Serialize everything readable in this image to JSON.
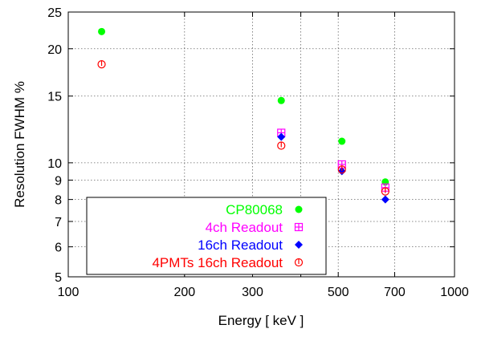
{
  "chart_data": {
    "type": "scatter",
    "title": "",
    "xlabel": "Energy [ keV ]",
    "ylabel": "Resolution FWHM %",
    "x_scale": "log",
    "y_scale": "log",
    "xlim": [
      100,
      1000
    ],
    "ylim": [
      5,
      25
    ],
    "grid": true,
    "legend_position": "bottom-left",
    "x_ticks": [
      100,
      200,
      300,
      400,
      500,
      700,
      1000
    ],
    "x_tick_labels": [
      "100",
      "200",
      "300",
      "",
      "500",
      "700",
      "1000"
    ],
    "y_ticks": [
      5,
      6,
      7,
      8,
      9,
      10,
      15,
      20,
      25
    ],
    "y_tick_labels": [
      "5",
      "6",
      "7",
      "8",
      "9",
      "10",
      "15",
      "20",
      "25"
    ],
    "series": [
      {
        "name": "CP80068",
        "color": "#00ff00",
        "marker": "filled-circle",
        "points": [
          [
            122,
            22.2
          ],
          [
            356,
            14.6
          ],
          [
            511,
            11.4
          ],
          [
            662,
            8.9
          ]
        ]
      },
      {
        "name": "4ch Readout",
        "color": "#ff00ff",
        "marker": "open-square-plus",
        "points": [
          [
            356,
            12.0
          ],
          [
            511,
            9.9
          ],
          [
            662,
            8.6
          ]
        ]
      },
      {
        "name": "16ch Readout",
        "color": "#0000ff",
        "marker": "filled-diamond",
        "points": [
          [
            356,
            11.7
          ],
          [
            511,
            9.5
          ],
          [
            662,
            8.0
          ]
        ]
      },
      {
        "name": "4PMTs 16ch Readout",
        "color": "#ff0000",
        "marker": "open-circle-plus",
        "points": [
          [
            122,
            18.2
          ],
          [
            356,
            11.1
          ],
          [
            511,
            9.6
          ],
          [
            662,
            8.4
          ]
        ]
      }
    ]
  }
}
